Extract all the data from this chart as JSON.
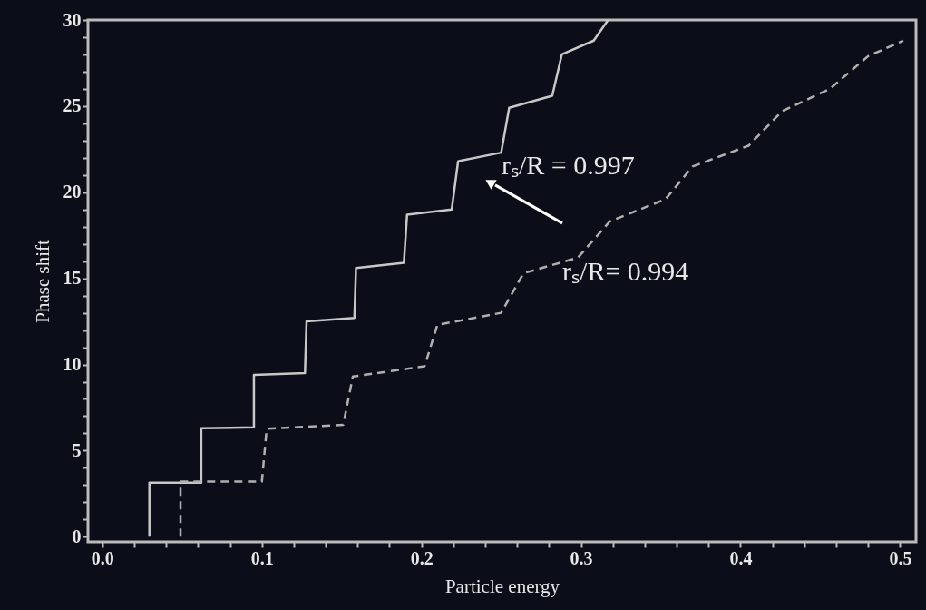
{
  "chart_data": {
    "type": "line",
    "xlabel": "Particle energy",
    "ylabel": "Phase shift",
    "xlim": [
      -0.009,
      0.51
    ],
    "ylim": [
      -0.3,
      30
    ],
    "xticks": [
      {
        "value": 0,
        "label": "0.0"
      },
      {
        "value": 0.02,
        "label": null
      },
      {
        "value": 0.04,
        "label": null
      },
      {
        "value": 0.06,
        "label": null
      },
      {
        "value": 0.08,
        "label": null
      },
      0.1,
      {
        "value": 0.12,
        "label": null
      },
      {
        "value": 0.14,
        "label": null
      },
      {
        "value": 0.16,
        "label": null
      },
      {
        "value": 0.18,
        "label": null
      },
      0.2,
      {
        "value": 0.22,
        "label": null
      },
      {
        "value": 0.24,
        "label": null
      },
      {
        "value": 0.26,
        "label": null
      },
      {
        "value": 0.28,
        "label": null
      },
      0.3,
      {
        "value": 0.32,
        "label": null
      },
      {
        "value": 0.34,
        "label": null
      },
      {
        "value": 0.36,
        "label": null
      },
      {
        "value": 0.38,
        "label": null
      },
      0.4,
      {
        "value": 0.42,
        "label": null
      },
      {
        "value": 0.44,
        "label": null
      },
      {
        "value": 0.46,
        "label": null
      },
      {
        "value": 0.48,
        "label": null
      },
      0.5
    ],
    "yticks": [
      0,
      {
        "value": 1,
        "label": null
      },
      {
        "value": 2,
        "label": null
      },
      {
        "value": 3,
        "label": null
      },
      {
        "value": 4,
        "label": null
      },
      5,
      {
        "value": 6,
        "label": null
      },
      {
        "value": 7,
        "label": null
      },
      {
        "value": 8,
        "label": null
      },
      {
        "value": 9,
        "label": null
      },
      10,
      {
        "value": 11,
        "label": null
      },
      {
        "value": 12,
        "label": null
      },
      {
        "value": 13,
        "label": null
      },
      {
        "value": 14,
        "label": null
      },
      15,
      {
        "value": 16,
        "label": null
      },
      {
        "value": 17,
        "label": null
      },
      {
        "value": 18,
        "label": null
      },
      {
        "value": 19,
        "label": null
      },
      20,
      {
        "value": 21,
        "label": null
      },
      {
        "value": 22,
        "label": null
      },
      {
        "value": 23,
        "label": null
      },
      {
        "value": 24,
        "label": null
      },
      25,
      {
        "value": 26,
        "label": null
      },
      {
        "value": 27,
        "label": null
      },
      {
        "value": 28,
        "label": null
      },
      {
        "value": 29,
        "label": null
      },
      30
    ],
    "grid": false,
    "marker": "none",
    "series": [
      {
        "color": "#c8c8c8",
        "line_style": "solid",
        "x": [
          0.0295,
          0.0295,
          0.062,
          0.062,
          0.095,
          0.095,
          0.127,
          0.128,
          0.158,
          0.159,
          0.189,
          0.191,
          0.219,
          0.223,
          0.25,
          0.255,
          0.282,
          0.288,
          0.308,
          0.317
        ],
        "values": [
          0,
          3.14,
          3.14,
          6.3,
          6.35,
          9.4,
          9.5,
          12.5,
          12.7,
          15.6,
          15.9,
          18.7,
          19.0,
          21.8,
          22.3,
          24.9,
          25.6,
          28.0,
          28.8,
          30
        ]
      },
      {
        "color": "#b0b0b0",
        "line_style": "dashed",
        "x": [
          0.049,
          0.049,
          0.1,
          0.103,
          0.151,
          0.157,
          0.202,
          0.21,
          0.25,
          0.264,
          0.298,
          0.318,
          0.353,
          0.37,
          0.405,
          0.426,
          0.456,
          0.48,
          0.502
        ],
        "values": [
          0,
          3.2,
          3.2,
          6.27,
          6.5,
          9.3,
          9.9,
          12.3,
          13.0,
          15.3,
          16.2,
          18.3,
          19.6,
          21.5,
          22.7,
          24.7,
          26.0,
          27.9,
          28.8
        ]
      }
    ],
    "annotations": [
      {
        "text": "rₛ/R = 0.997",
        "x": 0.24,
        "y": 22.1
      },
      {
        "text": "rₛ/R= 0.994",
        "x": 0.298,
        "y": 16.2
      }
    ]
  }
}
